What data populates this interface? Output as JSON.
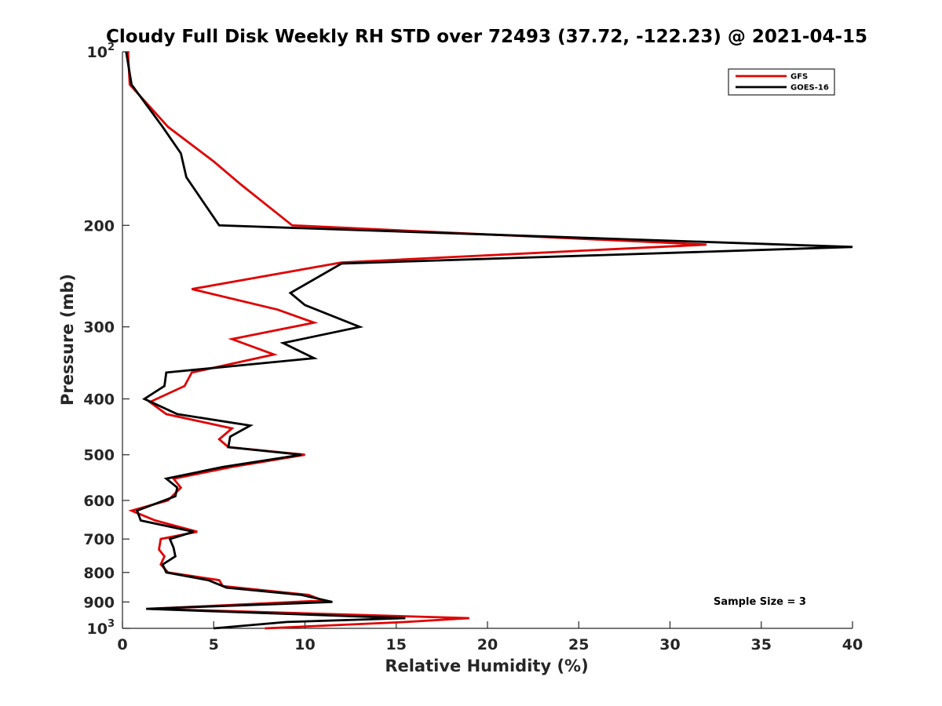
{
  "chart_data": {
    "type": "line",
    "title": "Cloudy Full Disk Weekly RH STD over 72493 (37.72, -122.23) @ 2021-04-15",
    "xlabel": "Relative Humidity (%)",
    "ylabel": "Pressure (mb)",
    "xlim": [
      0,
      40
    ],
    "ylim": [
      100,
      1000
    ],
    "y_scale": "log",
    "y_reversed": true,
    "grid": false,
    "legend_position": "top-right",
    "x_ticks": [
      "0",
      "5",
      "10",
      "15",
      "20",
      "25",
      "30",
      "35",
      "40"
    ],
    "y_ticks": [
      {
        "value": 100,
        "base": "10",
        "exp": "2"
      },
      {
        "value": 200,
        "label": "200"
      },
      {
        "value": 300,
        "label": "300"
      },
      {
        "value": 400,
        "label": "400"
      },
      {
        "value": 500,
        "label": "500"
      },
      {
        "value": 600,
        "label": "600"
      },
      {
        "value": 700,
        "label": "700"
      },
      {
        "value": 800,
        "label": "800"
      },
      {
        "value": 900,
        "label": "900"
      },
      {
        "value": 1000,
        "base": "10",
        "exp": "3"
      }
    ],
    "annotation": "Sample Size = 3",
    "series": [
      {
        "name": "GFS",
        "color": "#e00000",
        "points": [
          [
            0.3,
            100
          ],
          [
            0.4,
            114
          ],
          [
            2.5,
            135
          ],
          [
            5.0,
            155
          ],
          [
            6.5,
            170
          ],
          [
            9.3,
            200
          ],
          [
            32.0,
            216
          ],
          [
            12.0,
            232
          ],
          [
            3.8,
            258
          ],
          [
            8.5,
            280
          ],
          [
            10.5,
            295
          ],
          [
            6.0,
            315
          ],
          [
            8.3,
            335
          ],
          [
            3.8,
            360
          ],
          [
            3.4,
            380
          ],
          [
            1.5,
            405
          ],
          [
            2.4,
            425
          ],
          [
            6.0,
            450
          ],
          [
            5.3,
            470
          ],
          [
            5.8,
            485
          ],
          [
            10.0,
            500
          ],
          [
            6.0,
            525
          ],
          [
            2.8,
            550
          ],
          [
            3.2,
            570
          ],
          [
            2.5,
            600
          ],
          [
            0.5,
            625
          ],
          [
            1.8,
            650
          ],
          [
            4.1,
            680
          ],
          [
            2.1,
            700
          ],
          [
            2.0,
            730
          ],
          [
            2.3,
            750
          ],
          [
            2.1,
            775
          ],
          [
            2.5,
            800
          ],
          [
            5.3,
            825
          ],
          [
            5.5,
            845
          ],
          [
            10.2,
            875
          ],
          [
            11.0,
            895
          ],
          [
            1.5,
            925
          ],
          [
            19.0,
            960
          ],
          [
            15.5,
            975
          ],
          [
            7.8,
            1000
          ]
        ]
      },
      {
        "name": "GOES-16",
        "color": "#000000",
        "points": [
          [
            0.2,
            100
          ],
          [
            0.5,
            114
          ],
          [
            2.2,
            135
          ],
          [
            3.2,
            150
          ],
          [
            3.5,
            165
          ],
          [
            5.3,
            200
          ],
          [
            40.0,
            218
          ],
          [
            12.0,
            233
          ],
          [
            9.2,
            262
          ],
          [
            10.0,
            275
          ],
          [
            13.0,
            300
          ],
          [
            8.8,
            320
          ],
          [
            10.5,
            340
          ],
          [
            2.4,
            360
          ],
          [
            2.3,
            380
          ],
          [
            1.2,
            400
          ],
          [
            3.0,
            425
          ],
          [
            7.0,
            445
          ],
          [
            5.9,
            465
          ],
          [
            5.8,
            485
          ],
          [
            9.8,
            500
          ],
          [
            5.5,
            525
          ],
          [
            2.4,
            550
          ],
          [
            3.0,
            570
          ],
          [
            2.9,
            590
          ],
          [
            0.8,
            625
          ],
          [
            1.0,
            650
          ],
          [
            3.9,
            680
          ],
          [
            2.6,
            700
          ],
          [
            2.8,
            725
          ],
          [
            2.9,
            750
          ],
          [
            2.2,
            775
          ],
          [
            2.4,
            800
          ],
          [
            4.7,
            825
          ],
          [
            5.7,
            850
          ],
          [
            9.8,
            875
          ],
          [
            11.5,
            900
          ],
          [
            1.3,
            925
          ],
          [
            15.5,
            960
          ],
          [
            9.0,
            975
          ],
          [
            5.0,
            1000
          ]
        ]
      }
    ]
  }
}
